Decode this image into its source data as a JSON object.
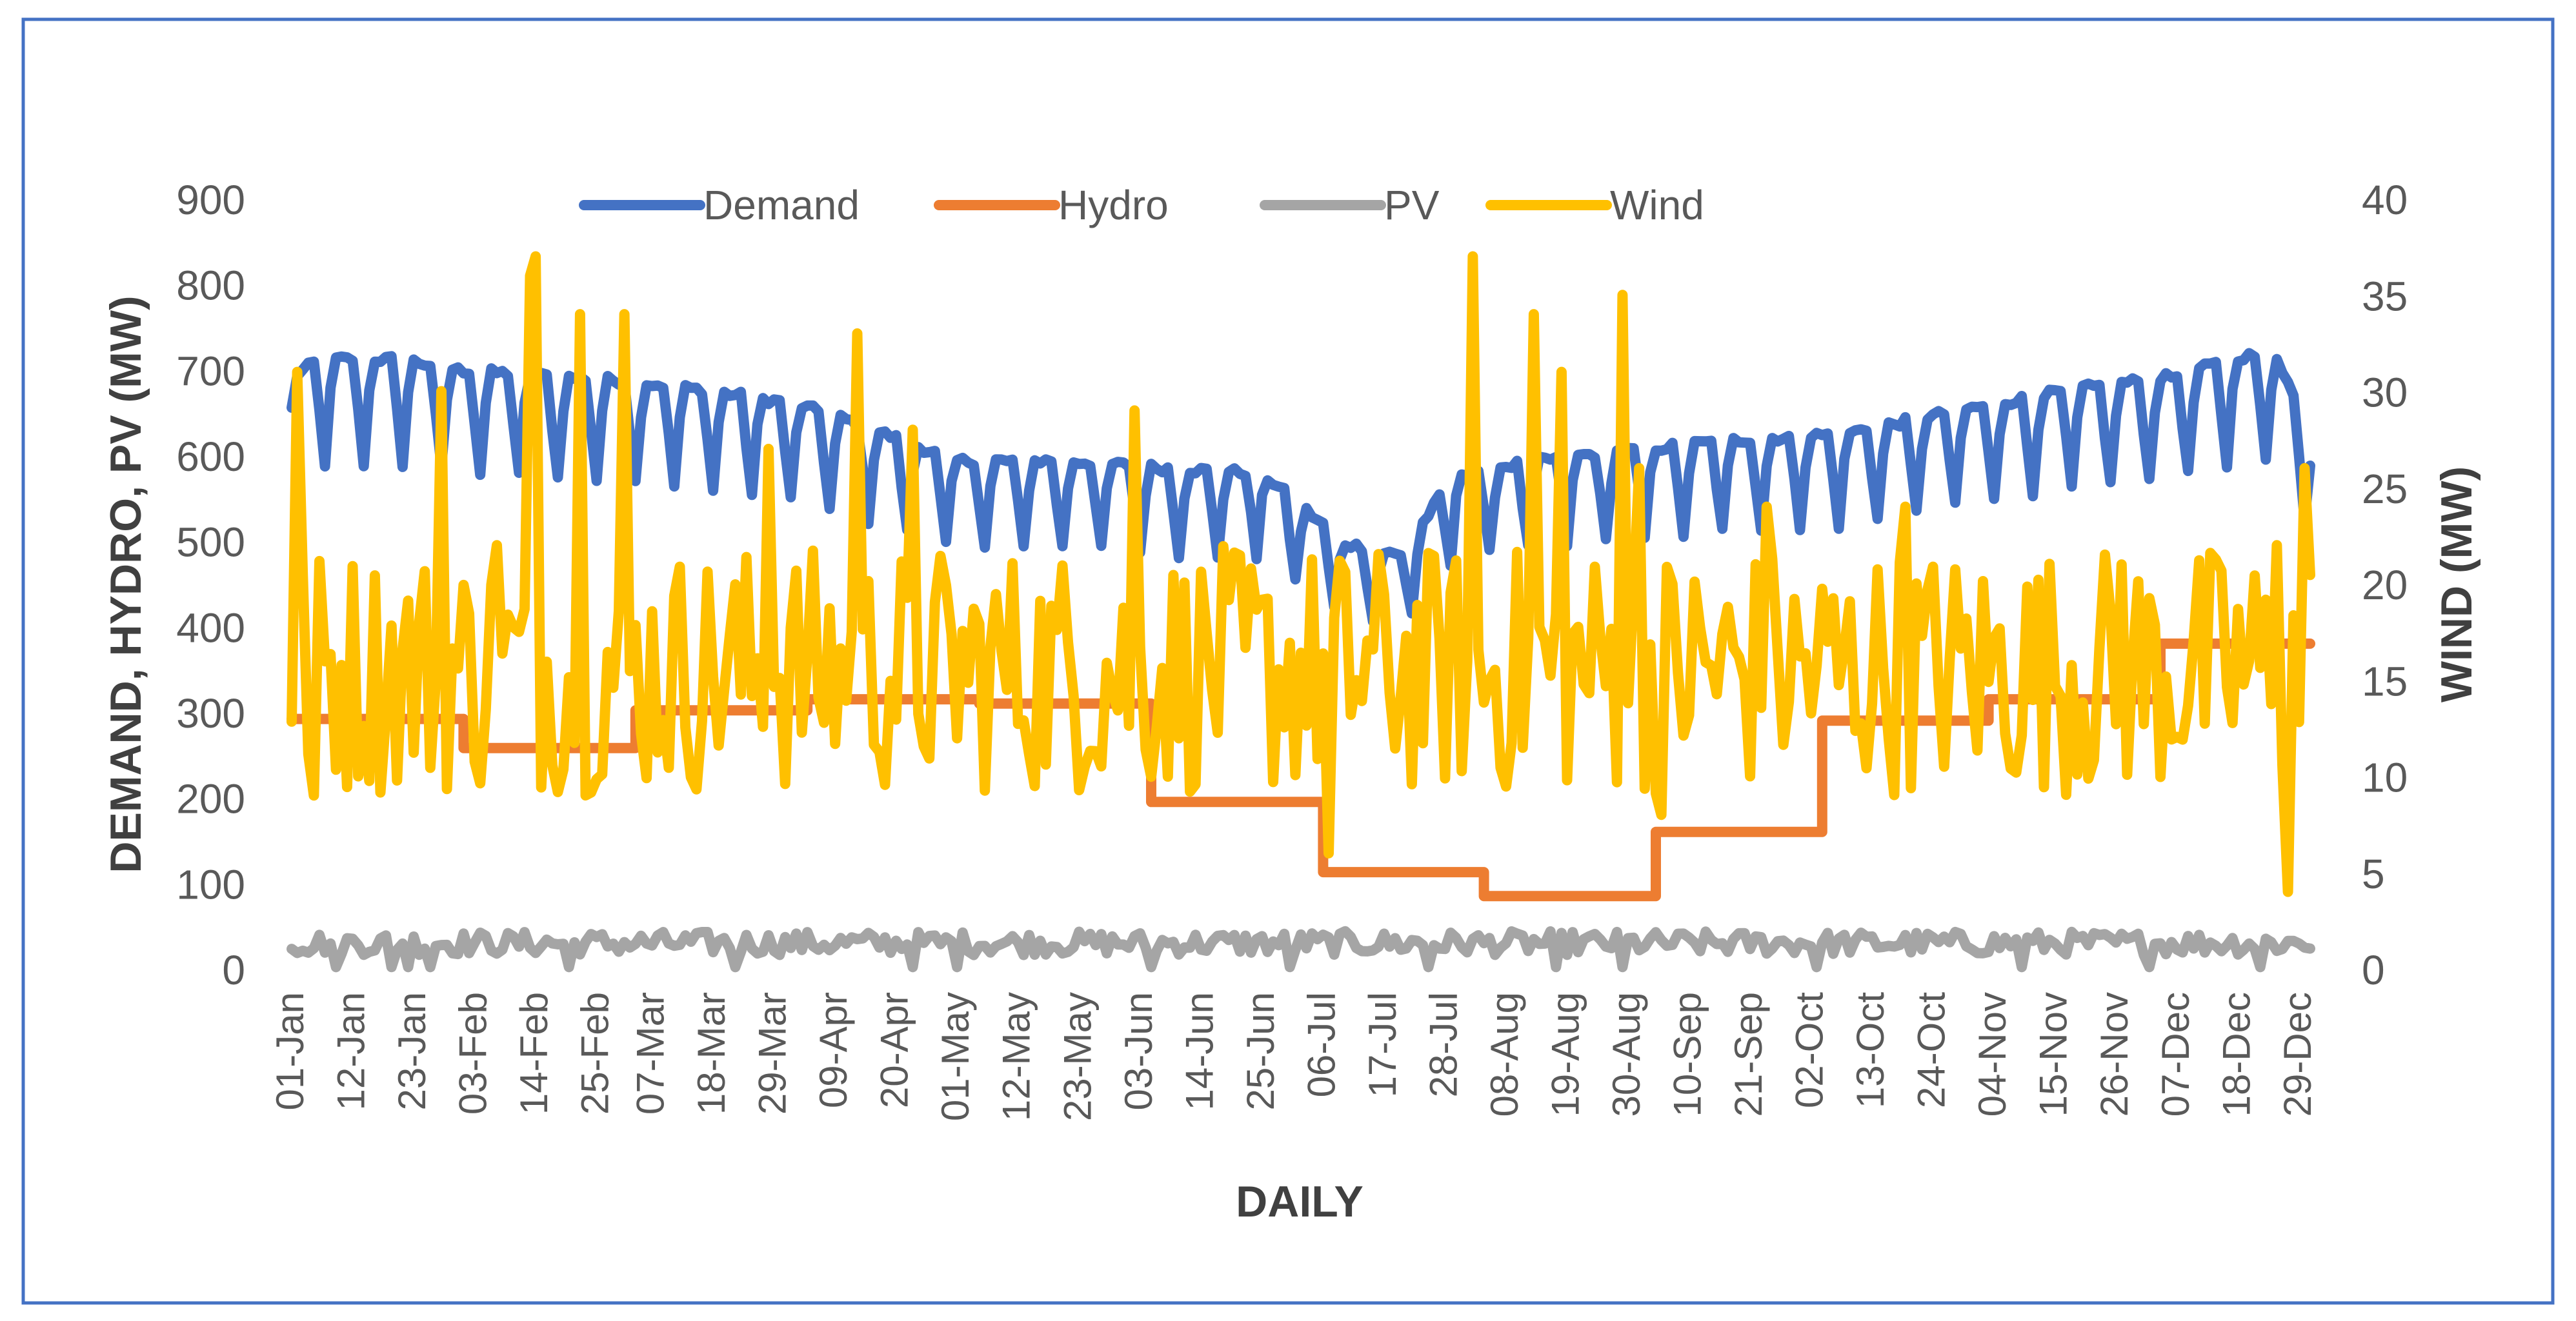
{
  "chart_data": {
    "type": "line",
    "title": "",
    "xlabel": "DAILY",
    "ylabel": "DEMAND, HYDRO, PV (MW)",
    "y2label": "WIND (MW)",
    "ylim": [
      0,
      900
    ],
    "y2lim": [
      0,
      40
    ],
    "yticks": [
      0,
      100,
      200,
      300,
      400,
      500,
      600,
      700,
      800,
      900
    ],
    "y2ticks": [
      0,
      5,
      10,
      15,
      20,
      25,
      30,
      35,
      40
    ],
    "grid": false,
    "legend_position": "top",
    "x_days": 365,
    "x_tick_day_index": [
      0,
      11,
      22,
      33,
      44,
      55,
      65,
      76,
      87,
      98,
      109,
      120,
      131,
      142,
      153,
      164,
      175,
      186,
      197,
      208,
      219,
      230,
      241,
      252,
      263,
      274,
      285,
      296,
      307,
      318,
      329,
      340,
      351,
      362
    ],
    "x_tick_labels": [
      "01-Jan",
      "12-Jan",
      "23-Jan",
      "03-Feb",
      "14-Feb",
      "25-Feb",
      "07-Mar",
      "18-Mar",
      "29-Mar",
      "09-Apr",
      "20-Apr",
      "01-May",
      "12-May",
      "23-May",
      "03-Jun",
      "14-Jun",
      "25-Jun",
      "06-Jul",
      "17-Jul",
      "28-Jul",
      "08-Aug",
      "19-Aug",
      "30-Aug",
      "10-Sep",
      "21-Sep",
      "02-Oct",
      "13-Oct",
      "24-Oct",
      "04-Nov",
      "15-Nov",
      "26-Nov",
      "07-Dec",
      "18-Dec",
      "29-Dec"
    ],
    "series": [
      {
        "name": "Demand",
        "axis": "left",
        "color": "#4472C4",
        "model": "weekly",
        "weekday_ratio": 0.965,
        "weekend_ratio": 0.8,
        "envelope": {
          "days": [
            0,
            5,
            20,
            30,
            45,
            60,
            75,
            90,
            100,
            120,
            140,
            160,
            175,
            190,
            200,
            210,
            230,
            245,
            260,
            280,
            300,
            320,
            340,
            352,
            358,
            364
          ],
          "values": [
            715,
            738,
            738,
            725,
            718,
            712,
            700,
            685,
            665,
            615,
            615,
            605,
            600,
            515,
            500,
            600,
            620,
            630,
            640,
            648,
            675,
            700,
            718,
            742,
            742,
            645
          ]
        }
      },
      {
        "name": "Hydro",
        "axis": "left",
        "color": "#ED7D31",
        "model": "steps",
        "steps": [
          {
            "from": 0,
            "to": 30,
            "value": 292
          },
          {
            "from": 31,
            "to": 61,
            "value": 258
          },
          {
            "from": 62,
            "to": 92,
            "value": 302
          },
          {
            "from": 93,
            "to": 123,
            "value": 315
          },
          {
            "from": 124,
            "to": 154,
            "value": 310
          },
          {
            "from": 155,
            "to": 185,
            "value": 195
          },
          {
            "from": 186,
            "to": 214,
            "value": 113
          },
          {
            "from": 215,
            "to": 245,
            "value": 85
          },
          {
            "from": 246,
            "to": 275,
            "value": 160
          },
          {
            "from": 276,
            "to": 305,
            "value": 290
          },
          {
            "from": 306,
            "to": 336,
            "value": 315
          },
          {
            "from": 337,
            "to": 364,
            "value": 380
          }
        ]
      },
      {
        "name": "PV",
        "axis": "left",
        "color": "#A5A5A5",
        "model": "noise",
        "base": 30,
        "amplitude": 14,
        "dips": [
          8,
          18,
          21,
          25,
          50,
          80,
          112,
          120,
          155,
          180,
          205,
          228,
          240,
          275,
          312,
          335,
          355
        ]
      },
      {
        "name": "Wind",
        "axis": "right",
        "color": "#FFC000",
        "model": "noise",
        "base": 15.5,
        "amplitude": 6.5,
        "min": 3.5,
        "max": 37,
        "spikes": [
          {
            "day": 1,
            "value": 31
          },
          {
            "day": 4,
            "value": 9
          },
          {
            "day": 27,
            "value": 30
          },
          {
            "day": 37,
            "value": 22
          },
          {
            "day": 43,
            "value": 36
          },
          {
            "day": 44,
            "value": 37
          },
          {
            "day": 52,
            "value": 34
          },
          {
            "day": 60,
            "value": 34
          },
          {
            "day": 86,
            "value": 27
          },
          {
            "day": 102,
            "value": 33
          },
          {
            "day": 112,
            "value": 28
          },
          {
            "day": 152,
            "value": 29
          },
          {
            "day": 187,
            "value": 6
          },
          {
            "day": 213,
            "value": 37
          },
          {
            "day": 224,
            "value": 34
          },
          {
            "day": 229,
            "value": 31
          },
          {
            "day": 240,
            "value": 35
          },
          {
            "day": 243,
            "value": 26
          },
          {
            "day": 247,
            "value": 8
          },
          {
            "day": 266,
            "value": 24
          },
          {
            "day": 291,
            "value": 24
          },
          {
            "day": 330,
            "value": 21
          },
          {
            "day": 358,
            "value": 22
          },
          {
            "day": 360,
            "value": 4
          },
          {
            "day": 363,
            "value": 26
          }
        ]
      }
    ]
  }
}
